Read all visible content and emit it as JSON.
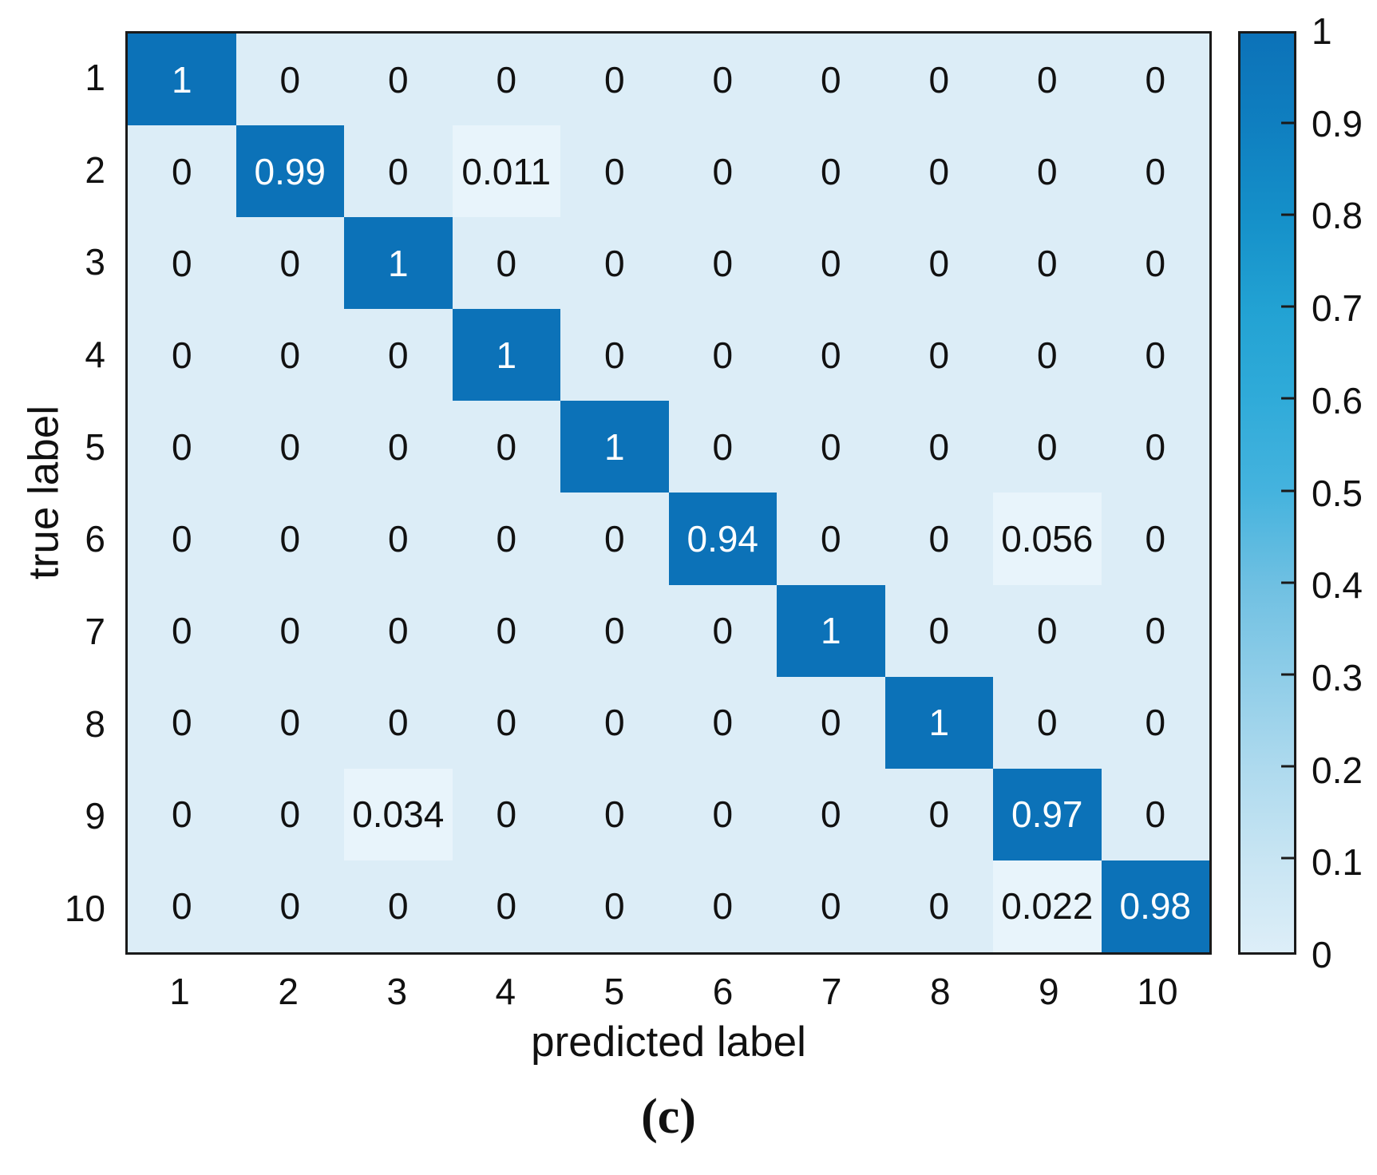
{
  "figure": {
    "caption": "(c)"
  },
  "chart_data": {
    "type": "heatmap",
    "title": "",
    "xlabel": "predicted label",
    "ylabel": "true label",
    "x_categories": [
      "1",
      "2",
      "3",
      "4",
      "5",
      "6",
      "7",
      "8",
      "9",
      "10"
    ],
    "y_categories": [
      "1",
      "2",
      "3",
      "4",
      "5",
      "6",
      "7",
      "8",
      "9",
      "10"
    ],
    "values": [
      [
        1,
        0,
        0,
        0,
        0,
        0,
        0,
        0,
        0,
        0
      ],
      [
        0,
        0.99,
        0,
        0.011,
        0,
        0,
        0,
        0,
        0,
        0
      ],
      [
        0,
        0,
        1,
        0,
        0,
        0,
        0,
        0,
        0,
        0
      ],
      [
        0,
        0,
        0,
        1,
        0,
        0,
        0,
        0,
        0,
        0
      ],
      [
        0,
        0,
        0,
        0,
        1,
        0,
        0,
        0,
        0,
        0
      ],
      [
        0,
        0,
        0,
        0,
        0,
        0.94,
        0,
        0,
        0.056,
        0
      ],
      [
        0,
        0,
        0,
        0,
        0,
        0,
        1,
        0,
        0,
        0
      ],
      [
        0,
        0,
        0,
        0,
        0,
        0,
        0,
        1,
        0,
        0
      ],
      [
        0,
        0,
        0.034,
        0,
        0,
        0,
        0,
        0,
        0.97,
        0
      ],
      [
        0,
        0,
        0,
        0,
        0,
        0,
        0,
        0,
        0.022,
        0.98
      ]
    ],
    "labels": [
      [
        "1",
        "0",
        "0",
        "0",
        "0",
        "0",
        "0",
        "0",
        "0",
        "0"
      ],
      [
        "0",
        "0.99",
        "0",
        "0.011",
        "0",
        "0",
        "0",
        "0",
        "0",
        "0"
      ],
      [
        "0",
        "0",
        "1",
        "0",
        "0",
        "0",
        "0",
        "0",
        "0",
        "0"
      ],
      [
        "0",
        "0",
        "0",
        "1",
        "0",
        "0",
        "0",
        "0",
        "0",
        "0"
      ],
      [
        "0",
        "0",
        "0",
        "0",
        "1",
        "0",
        "0",
        "0",
        "0",
        "0"
      ],
      [
        "0",
        "0",
        "0",
        "0",
        "0",
        "0.94",
        "0",
        "0",
        "0.056",
        "0"
      ],
      [
        "0",
        "0",
        "0",
        "0",
        "0",
        "0",
        "1",
        "0",
        "0",
        "0"
      ],
      [
        "0",
        "0",
        "0",
        "0",
        "0",
        "0",
        "0",
        "1",
        "0",
        "0"
      ],
      [
        "0",
        "0",
        "0.034",
        "0",
        "0",
        "0",
        "0",
        "0",
        "0.97",
        "0"
      ],
      [
        "0",
        "0",
        "0",
        "0",
        "0",
        "0",
        "0",
        "0",
        "0.022",
        "0.98"
      ]
    ],
    "grid": false,
    "colorbar": {
      "min": 0,
      "max": 1,
      "tick_labels": [
        "1",
        "0.9",
        "0.8",
        "0.7",
        "0.6",
        "0.5",
        "0.4",
        "0.3",
        "0.2",
        "0.1",
        "0"
      ],
      "tick_values": [
        1,
        0.9,
        0.8,
        0.7,
        0.6,
        0.5,
        0.4,
        0.3,
        0.2,
        0.1,
        0
      ],
      "position": "right"
    },
    "colors": {
      "high": "#0c72b8",
      "zero_bg": "#dcedf7",
      "minor_bg": "#e8f4fb",
      "text_dark": "#111111",
      "text_light": "#ffffff",
      "border": "#1a1a1a",
      "gradient_stops": [
        {
          "value": 0.0,
          "color": "#ddeef8"
        },
        {
          "value": 0.1,
          "color": "#c8e5f3"
        },
        {
          "value": 0.2,
          "color": "#aedaee"
        },
        {
          "value": 0.3,
          "color": "#8fcde8"
        },
        {
          "value": 0.4,
          "color": "#6fc0e2"
        },
        {
          "value": 0.5,
          "color": "#45b3de"
        },
        {
          "value": 0.6,
          "color": "#30abd9"
        },
        {
          "value": 0.7,
          "color": "#22a2d3"
        },
        {
          "value": 0.8,
          "color": "#1590c9"
        },
        {
          "value": 0.9,
          "color": "#0f7fc0"
        },
        {
          "value": 1.0,
          "color": "#0c72b8"
        }
      ]
    }
  }
}
